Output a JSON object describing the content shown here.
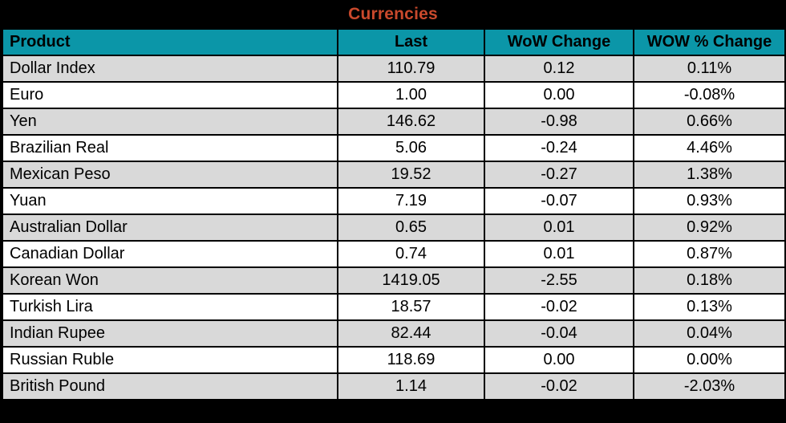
{
  "title": "Currencies",
  "colors": {
    "title_text": "#C9492C",
    "header_bg": "#0B96A8",
    "header_text": "#000000",
    "row_even_bg": "#D9D9D9",
    "row_odd_bg": "#FFFFFF",
    "border": "#000000",
    "background": "#000000"
  },
  "chart_data": {
    "type": "table",
    "title": "Currencies",
    "columns": [
      "Product",
      "Last",
      "WoW Change",
      "WOW % Change"
    ],
    "rows": [
      [
        "Dollar Index",
        "110.79",
        "0.12",
        "0.11%"
      ],
      [
        "Euro",
        "1.00",
        "0.00",
        "-0.08%"
      ],
      [
        "Yen",
        "146.62",
        "-0.98",
        "0.66%"
      ],
      [
        "Brazilian Real",
        "5.06",
        "-0.24",
        "4.46%"
      ],
      [
        "Mexican Peso",
        "19.52",
        "-0.27",
        "1.38%"
      ],
      [
        "Yuan",
        "7.19",
        "-0.07",
        "0.93%"
      ],
      [
        "Australian Dollar",
        "0.65",
        "0.01",
        "0.92%"
      ],
      [
        "Canadian Dollar",
        "0.74",
        "0.01",
        "0.87%"
      ],
      [
        "Korean Won",
        "1419.05",
        "-2.55",
        "0.18%"
      ],
      [
        "Turkish Lira",
        "18.57",
        "-0.02",
        "0.13%"
      ],
      [
        "Indian Rupee",
        "82.44",
        "-0.04",
        "0.04%"
      ],
      [
        "Russian Ruble",
        "118.69",
        "0.00",
        "0.00%"
      ],
      [
        "British Pound",
        "1.14",
        "-0.02",
        "-2.03%"
      ]
    ],
    "layout": {
      "row_striping": "first-row-gray-alternating",
      "numeric_alignment": "center",
      "product_alignment": "left"
    }
  }
}
